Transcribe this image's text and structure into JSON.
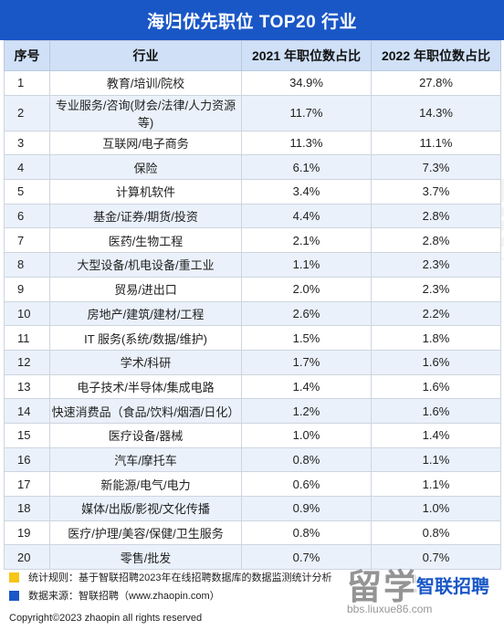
{
  "title": "海归优先职位 TOP20 行业",
  "colors": {
    "title_bg": "#1a57c6",
    "header_bg": "#cfe0f7",
    "stripe": "#eaf1fb",
    "yellow": "#f5c518",
    "blue": "#1a57c6"
  },
  "chart_data": {
    "type": "table",
    "columns": [
      "序号",
      "行业",
      "2021 年职位数占比",
      "2022 年职位数占比"
    ],
    "rows": [
      [
        "1",
        "教育/培训/院校",
        "34.9%",
        "27.8%"
      ],
      [
        "2",
        "专业服务/咨询(财会/法律/人力资源等)",
        "11.7%",
        "14.3%"
      ],
      [
        "3",
        "互联网/电子商务",
        "11.3%",
        "11.1%"
      ],
      [
        "4",
        "保险",
        "6.1%",
        "7.3%"
      ],
      [
        "5",
        "计算机软件",
        "3.4%",
        "3.7%"
      ],
      [
        "6",
        "基金/证券/期货/投资",
        "4.4%",
        "2.8%"
      ],
      [
        "7",
        "医药/生物工程",
        "2.1%",
        "2.8%"
      ],
      [
        "8",
        "大型设备/机电设备/重工业",
        "1.1%",
        "2.3%"
      ],
      [
        "9",
        "贸易/进出口",
        "2.0%",
        "2.3%"
      ],
      [
        "10",
        "房地产/建筑/建材/工程",
        "2.6%",
        "2.2%"
      ],
      [
        "11",
        "IT 服务(系统/数据/维护)",
        "1.5%",
        "1.8%"
      ],
      [
        "12",
        "学术/科研",
        "1.7%",
        "1.6%"
      ],
      [
        "13",
        "电子技术/半导体/集成电路",
        "1.4%",
        "1.6%"
      ],
      [
        "14",
        "快速消费品（食品/饮料/烟酒/日化）",
        "1.2%",
        "1.6%"
      ],
      [
        "15",
        "医疗设备/器械",
        "1.0%",
        "1.4%"
      ],
      [
        "16",
        "汽车/摩托车",
        "0.8%",
        "1.1%"
      ],
      [
        "17",
        "新能源/电气/电力",
        "0.6%",
        "1.1%"
      ],
      [
        "18",
        "媒体/出版/影视/文化传播",
        "0.9%",
        "1.0%"
      ],
      [
        "19",
        "医疗/护理/美容/保健/卫生服务",
        "0.8%",
        "0.8%"
      ],
      [
        "20",
        "零售/批发",
        "0.7%",
        "0.7%"
      ]
    ]
  },
  "notes": {
    "rule": "统计规则：基于智联招聘2023年在线招聘数据库的数据监测统计分析",
    "source": "数据来源：智联招聘（www.zhaopin.com）"
  },
  "copyright": "Copyright©2023 zhaopin all rights reserved",
  "watermark": {
    "center": "智联招聘",
    "corner_big": "留学",
    "corner_logo": "智联招聘",
    "corner_url": "bbs.liuxue86.com"
  }
}
